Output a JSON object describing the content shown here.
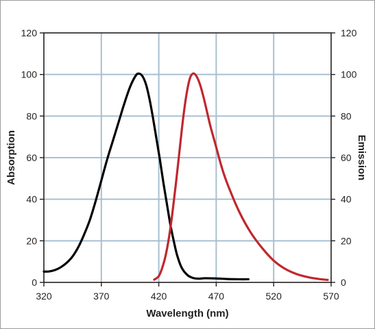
{
  "chart_data": {
    "type": "line",
    "title": "",
    "xlabel": "Wavelength (nm)",
    "ylabel_left": "Absorption",
    "ylabel_right": "Emission",
    "xlim": [
      320,
      570
    ],
    "ylim": [
      0,
      120
    ],
    "x_ticks": [
      320,
      370,
      420,
      470,
      520,
      570
    ],
    "y_ticks": [
      0,
      20,
      40,
      60,
      80,
      100,
      120
    ],
    "grid": true,
    "colors": {
      "grid": "#a8bfd0",
      "absorption": "#000000",
      "emission": "#c0272d",
      "axes": "#231f20"
    },
    "series": [
      {
        "axis": "left",
        "x": [
          320,
          325,
          330,
          335,
          340,
          345,
          350,
          355,
          360,
          365,
          370,
          375,
          380,
          385,
          390,
          395,
          400,
          403,
          406,
          409,
          412,
          415,
          418,
          421,
          424,
          427,
          430,
          433,
          436,
          440,
          445,
          450,
          455,
          460,
          470,
          480,
          490,
          498
        ],
        "values": [
          5.2,
          5.3,
          6,
          7.4,
          9.5,
          12.5,
          17,
          23,
          30,
          39,
          49,
          59,
          68,
          77,
          86,
          94,
          99.5,
          100.4,
          99,
          95,
          88,
          79,
          69,
          59,
          48,
          38,
          28,
          20,
          13,
          7,
          3.5,
          2.1,
          1.8,
          2,
          1.9,
          1.6,
          1.5,
          1.5
        ]
      },
      {
        "axis": "right",
        "x": [
          416,
          420,
          423,
          426,
          429,
          432,
          435,
          438,
          441,
          444,
          447,
          450,
          453,
          456,
          459,
          462,
          465,
          470,
          475,
          480,
          490,
          500,
          510,
          520,
          530,
          540,
          550,
          560,
          567
        ],
        "values": [
          1.3,
          3,
          7,
          13,
          22,
          34,
          48,
          63,
          78,
          90,
          98,
          100.5,
          99,
          95,
          89,
          82,
          75,
          65,
          55,
          47,
          34,
          24,
          16.5,
          10.5,
          6.5,
          4,
          2.5,
          1.6,
          1.2
        ]
      }
    ]
  }
}
